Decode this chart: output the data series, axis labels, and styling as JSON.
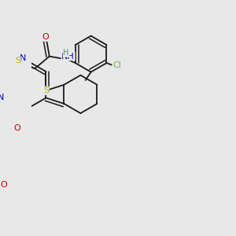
{
  "background_color": "#e8e8e8",
  "bond_color": "#1a1a1a",
  "atom_colors": {
    "S": "#b8b800",
    "N": "#0000cc",
    "O": "#cc0000",
    "Cl": "#55bb55",
    "H": "#558888",
    "C": "#1a1a1a"
  },
  "dbo": 0.012
}
